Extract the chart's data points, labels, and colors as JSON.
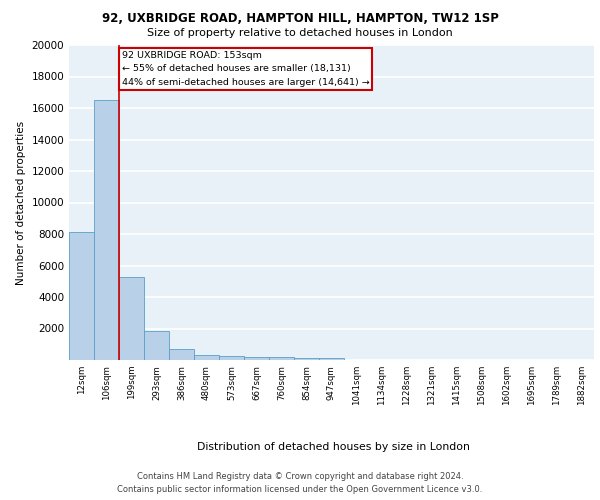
{
  "title1": "92, UXBRIDGE ROAD, HAMPTON HILL, HAMPTON, TW12 1SP",
  "title2": "Size of property relative to detached houses in London",
  "xlabel": "Distribution of detached houses by size in London",
  "ylabel": "Number of detached properties",
  "categories": [
    "12sqm",
    "106sqm",
    "199sqm",
    "293sqm",
    "386sqm",
    "480sqm",
    "573sqm",
    "667sqm",
    "760sqm",
    "854sqm",
    "947sqm",
    "1041sqm",
    "1134sqm",
    "1228sqm",
    "1321sqm",
    "1415sqm",
    "1508sqm",
    "1602sqm",
    "1695sqm",
    "1789sqm",
    "1882sqm"
  ],
  "values": [
    8100,
    16500,
    5300,
    1850,
    700,
    300,
    230,
    210,
    175,
    150,
    130,
    0,
    0,
    0,
    0,
    0,
    0,
    0,
    0,
    0,
    0
  ],
  "bar_color": "#b8d0e8",
  "bar_edge_color": "#5a9fc8",
  "background_color": "#e8f0f8",
  "grid_color": "#ffffff",
  "red_line_x": 1.5,
  "annotation_text": "92 UXBRIDGE ROAD: 153sqm\n← 55% of detached houses are smaller (18,131)\n44% of semi-detached houses are larger (14,641) →",
  "annotation_box_color": "#ffffff",
  "annotation_edge_color": "#cc0000",
  "ylim": [
    0,
    20000
  ],
  "yticks": [
    0,
    2000,
    4000,
    6000,
    8000,
    10000,
    12000,
    14000,
    16000,
    18000,
    20000
  ],
  "footnote1": "Contains HM Land Registry data © Crown copyright and database right 2024.",
  "footnote2": "Contains public sector information licensed under the Open Government Licence v3.0."
}
